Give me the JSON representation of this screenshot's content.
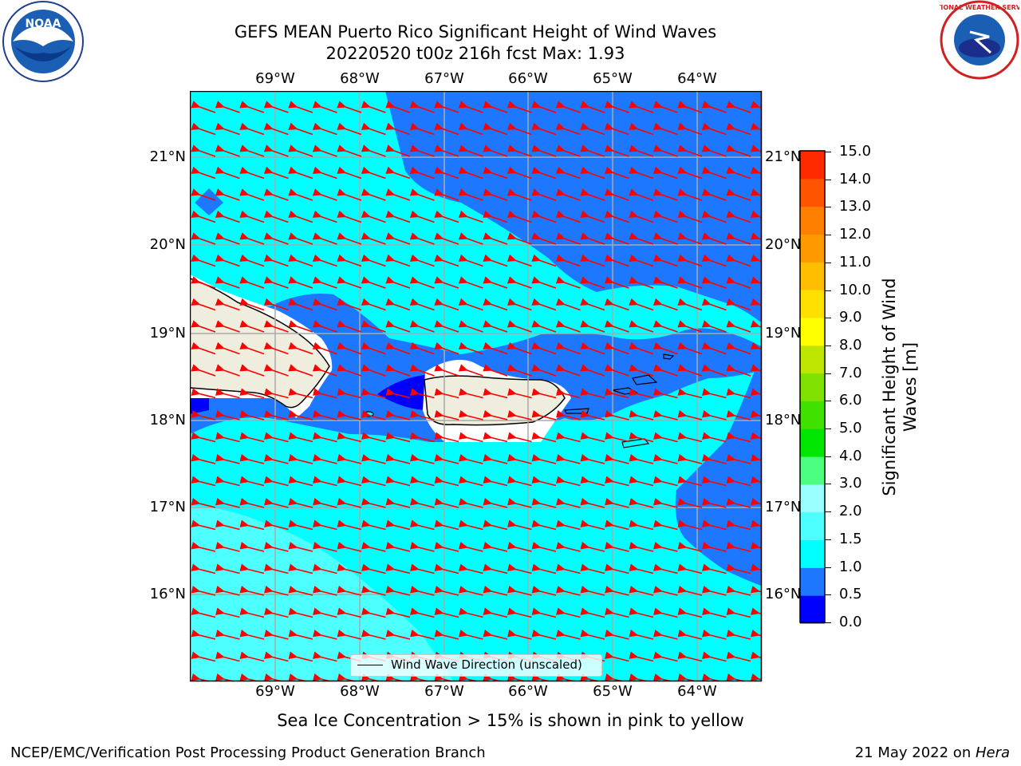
{
  "header": {
    "title_line1": "GEFS MEAN Puerto Rico Significant Height of Wind Waves",
    "title_line2": "20220520 t00z 216h fcst   Max: 1.93"
  },
  "logos": {
    "left": {
      "name": "noaa-logo",
      "text": "NOAA"
    },
    "right": {
      "name": "national-weather-service-logo",
      "text": "NATIONAL WEATHER SERVICE"
    }
  },
  "map": {
    "lon_labels": [
      "69°W",
      "68°W",
      "67°W",
      "66°W",
      "65°W",
      "64°W"
    ],
    "lat_labels": [
      "21°N",
      "20°N",
      "19°N",
      "18°N",
      "17°N",
      "16°N"
    ],
    "legend_label": "Wind Wave Direction (unscaled)",
    "arrow_color": "#ff0000",
    "land_color": "#efedde"
  },
  "colorbar": {
    "label": "Significant Height of Wind Waves [m]",
    "ticks": [
      "15.0",
      "14.0",
      "13.0",
      "12.0",
      "11.0",
      "10.0",
      "9.0",
      "8.0",
      "7.0",
      "6.0",
      "5.0",
      "4.0",
      "3.0",
      "2.0",
      "1.5",
      "1.0",
      "0.5",
      "0.0"
    ],
    "colors": [
      "#0000ff",
      "#1e78ff",
      "#00ffff",
      "#4dffff",
      "#99ffff",
      "#4dff80",
      "#00e600",
      "#40e000",
      "#80e000",
      "#bfe600",
      "#ffff00",
      "#ffe000",
      "#ffbf00",
      "#ff9900",
      "#ff7f00",
      "#ff5500",
      "#ff2a00",
      "#ff0000"
    ]
  },
  "note": "Sea Ice Concentration > 15% is shown in pink to yellow",
  "footer": {
    "left": "NCEP/EMC/Verification Post Processing Product Generation Branch",
    "right_date": "21 May 2022 on ",
    "right_host": "Hera"
  }
}
